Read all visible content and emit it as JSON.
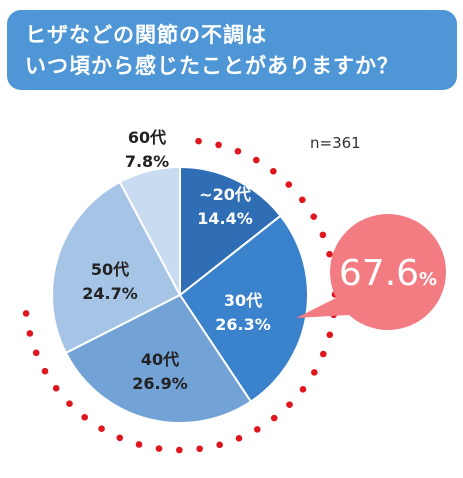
{
  "title": {
    "line1": "ヒザなどの関節の不調は",
    "line2": "いつ頃から感じたことがありますか？"
  },
  "n_label": "n=361",
  "highlight": {
    "value": "67.6",
    "unit": "%",
    "color": "#f37b82"
  },
  "colors": {
    "title_bg": "#4e96d6",
    "dotted_ring": "#e0161e"
  },
  "chart_data": {
    "type": "pie",
    "title": "ヒザなどの関節の不調はいつ頃から感じたことがありますか？",
    "n": 361,
    "slices": [
      {
        "label": "~20代",
        "value": 14.4,
        "value_label": "14.4%",
        "color": "#2f6eb5",
        "text_color": "#ffffff"
      },
      {
        "label": "30代",
        "value": 26.3,
        "value_label": "26.3%",
        "color": "#3a82cc",
        "text_color": "#ffffff"
      },
      {
        "label": "40代",
        "value": 26.9,
        "value_label": "26.9%",
        "color": "#73a3d6",
        "text_color": "#222222"
      },
      {
        "label": "50代",
        "value": 24.7,
        "value_label": "24.7%",
        "color": "#a6c4e6",
        "text_color": "#222222"
      },
      {
        "label": "60代",
        "value": 7.8,
        "value_label": "7.8%",
        "color": "#c8dbf0",
        "text_color": "#222222"
      }
    ],
    "highlighted_slices": [
      "~20代",
      "30代",
      "40代"
    ],
    "highlighted_total": 67.6
  }
}
